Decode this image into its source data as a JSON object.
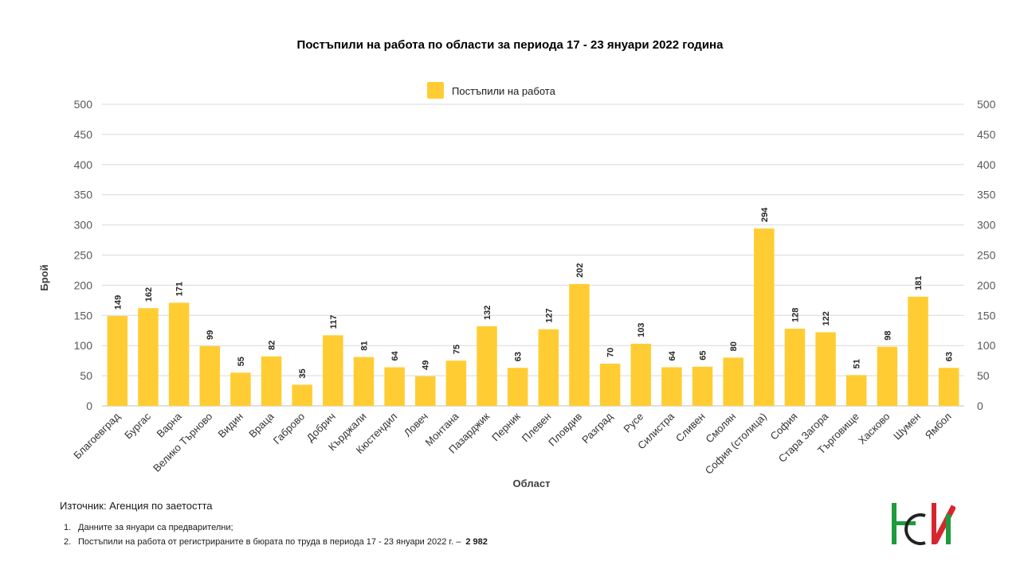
{
  "source": "Източник: Агенция по заетостта",
  "notes": [
    {
      "num": "1.",
      "text": "Данните за януари са предварителни;",
      "value": ""
    },
    {
      "num": "2.",
      "text": "Постъпили на работа от регистрираните в бюрата по труда в периода  17 - 23 януари 2022 г. –",
      "value": "2 982"
    }
  ],
  "logo": {
    "name": "НСИ logo",
    "colors": {
      "green": "#1e9b3c",
      "red": "#d7262d",
      "dark": "#222222"
    }
  },
  "chart_data": {
    "type": "bar",
    "title": "Постъпили на работа по области за периода 17 - 23 януари 2022 година",
    "xlabel": "Област",
    "ylabel": "Брой",
    "ylim": [
      0,
      500
    ],
    "yticks": [
      0,
      50,
      100,
      150,
      200,
      250,
      300,
      350,
      400,
      450,
      500
    ],
    "secondary_axis": true,
    "grid": true,
    "legend": "top-center",
    "bar_color": "#ffcd33",
    "categories": [
      "Благоевград",
      "Бургас",
      "Варна",
      "Велико Търново",
      "Видин",
      "Враца",
      "Габрово",
      "Добрич",
      "Кърджали",
      "Кюстендил",
      "Ловеч",
      "Монтана",
      "Пазарджик",
      "Перник",
      "Плевен",
      "Пловдив",
      "Разград",
      "Русе",
      "Силистра",
      "Сливен",
      "Смолян",
      "София (столица)",
      "София",
      "Стара Загора",
      "Търговище",
      "Хасково",
      "Шумен",
      "Ямбол"
    ],
    "series": [
      {
        "name": "Постъпили на работа",
        "values": [
          149,
          162,
          171,
          99,
          55,
          82,
          35,
          117,
          81,
          64,
          49,
          75,
          132,
          63,
          127,
          202,
          70,
          103,
          64,
          65,
          80,
          294,
          128,
          122,
          51,
          98,
          181,
          63
        ]
      }
    ]
  }
}
